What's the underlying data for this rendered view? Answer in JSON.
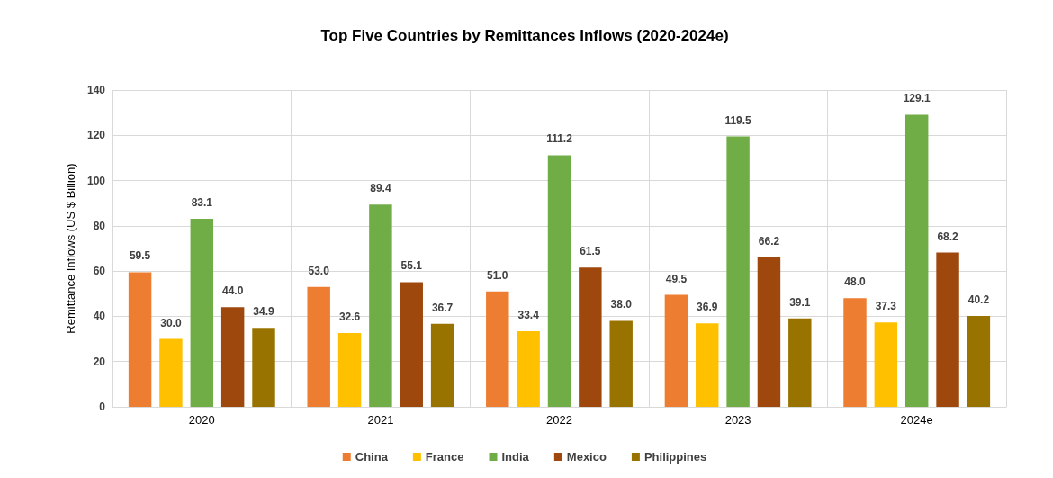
{
  "chart_data": {
    "type": "bar",
    "title": "Top Five Countries by Remittances Inflows (2020-2024e)",
    "ylabel": "Remittance Inflows (US $ Billion)",
    "categories": [
      "2020",
      "2021",
      "2022",
      "2023",
      "2024e"
    ],
    "series": [
      {
        "name": "China",
        "color": "#ed7d31",
        "values": [
          59.5,
          53.0,
          51.0,
          49.5,
          48.0
        ],
        "value_labels": [
          "59.5",
          "53.0",
          "51.0",
          "49.5",
          "48.0"
        ]
      },
      {
        "name": "France",
        "color": "#ffc000",
        "values": [
          30.0,
          32.6,
          33.4,
          36.9,
          37.3
        ],
        "value_labels": [
          "30.0",
          "32.6",
          "33.4",
          "36.9",
          "37.3"
        ]
      },
      {
        "name": "India",
        "color": "#70ad47",
        "values": [
          83.1,
          89.4,
          111.2,
          119.5,
          129.1
        ],
        "value_labels": [
          "83.1",
          "89.4",
          "111.2",
          "119.5",
          "129.1"
        ]
      },
      {
        "name": "Mexico",
        "color": "#9e480e",
        "values": [
          44.0,
          55.1,
          61.5,
          66.2,
          68.2
        ],
        "value_labels": [
          "44.0",
          "55.1",
          "61.5",
          "66.2",
          "68.2"
        ]
      },
      {
        "name": "Philippines",
        "color": "#997300",
        "values": [
          34.9,
          36.7,
          38.0,
          39.1,
          40.2
        ],
        "value_labels": [
          "34.9",
          "36.7",
          "38.0",
          "39.1",
          "40.2"
        ]
      }
    ],
    "ylim": [
      0,
      140
    ],
    "yticks": [
      0,
      20,
      40,
      60,
      80,
      100,
      120,
      140
    ],
    "grid": true,
    "legend": "bottom"
  }
}
